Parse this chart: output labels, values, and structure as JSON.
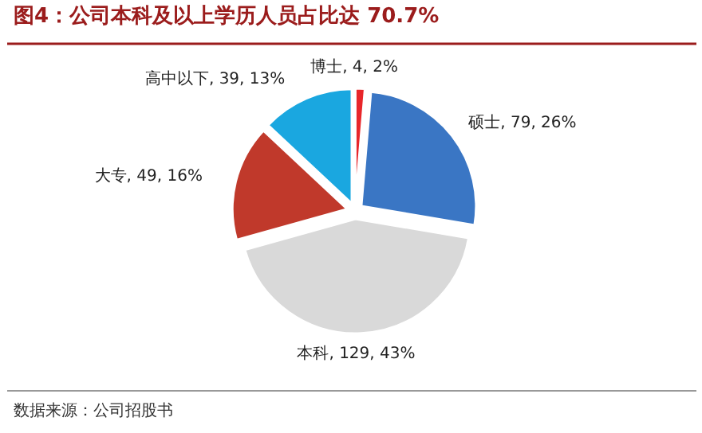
{
  "chart_data": {
    "type": "pie",
    "title": "图4：公司本科及以上学历人员占比达 70.7%",
    "categories": [
      "博士",
      "硕士",
      "本科",
      "大专",
      "高中以下"
    ],
    "values": [
      4,
      79,
      129,
      49,
      39
    ],
    "colors": [
      "#e8262a",
      "#3a76c4",
      "#d9d9d9",
      "#c0392b",
      "#1aa7e0"
    ],
    "value_labels": [
      ", 4, 2%",
      ", 79, 26%",
      ", 129, 43%",
      ", 49, 16%",
      ", 39, 13%"
    ],
    "annotations": [
      "数据来源：公司招股书"
    ]
  }
}
